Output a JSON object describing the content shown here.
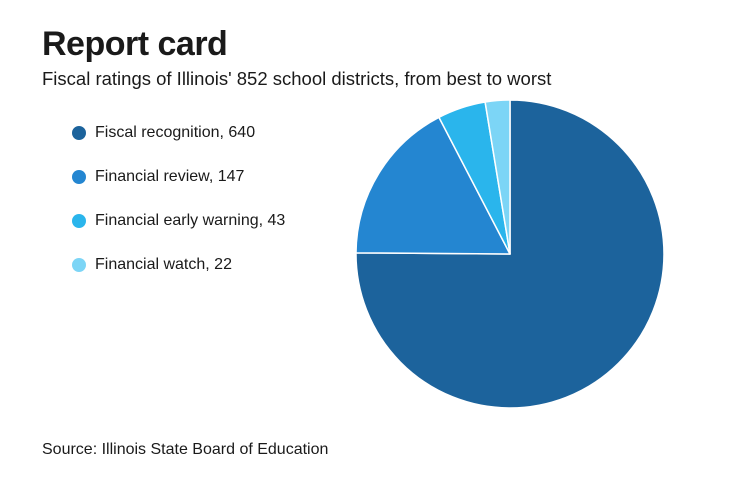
{
  "header": {
    "title": "Report card",
    "subtitle": "Fiscal ratings of Illinois' 852 school districts, from best to worst"
  },
  "legend": {
    "items": [
      {
        "label": "Fiscal recognition, 640",
        "color": "#1c639c"
      },
      {
        "label": "Financial review, 147",
        "color": "#2486d1"
      },
      {
        "label": "Financial early warning, 43",
        "color": "#2ab5ec"
      },
      {
        "label": "Financial watch, 22",
        "color": "#7cd5f6"
      }
    ]
  },
  "footer": {
    "source": "Source: Illinois State Board of Education"
  },
  "chart_data": {
    "type": "pie",
    "title": "Report card",
    "subtitle": "Fiscal ratings of Illinois' 852 school districts, from best to worst",
    "categories": [
      "Fiscal recognition",
      "Financial review",
      "Financial early warning",
      "Financial watch"
    ],
    "values": [
      640,
      147,
      43,
      22
    ],
    "colors": [
      "#1c639c",
      "#2486d1",
      "#2ab5ec",
      "#7cd5f6"
    ],
    "start": "12 o'clock",
    "direction": "clockwise",
    "legend_position": "left"
  }
}
